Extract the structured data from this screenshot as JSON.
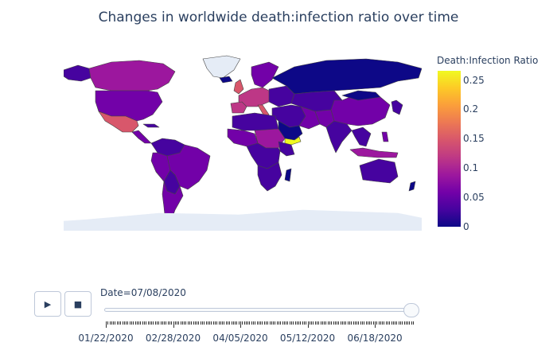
{
  "title": "Changes in worldwide death:infection ratio over time",
  "colorbar": {
    "title": "Death:Infection Ratio",
    "ticks": [
      "0.25",
      "0.2",
      "0.15",
      "0.1",
      "0.05",
      "0"
    ],
    "colorscale": [
      "#0d0887",
      "#46039f",
      "#7201a8",
      "#9c179e",
      "#bd3786",
      "#d8576b",
      "#ed7953",
      "#fb9f3a",
      "#fdca26",
      "#f0f921"
    ],
    "range": [
      0,
      0.27
    ]
  },
  "map": {
    "projection": "equirectangular",
    "land_color": "#e5ecf6",
    "border_color": "#444444"
  },
  "controls": {
    "play_icon": "play-icon",
    "stop_icon": "stop-icon",
    "play_glyph": "▶",
    "stop_glyph": "■"
  },
  "slider": {
    "current_label": "Date=07/08/2020",
    "current_index": 168,
    "total_steps": 170,
    "step_labels": [
      "01/22/2020",
      "02/28/2020",
      "04/05/2020",
      "05/12/2020",
      "06/18/2020"
    ],
    "step_label_indices": [
      0,
      37,
      74,
      111,
      148
    ]
  }
}
